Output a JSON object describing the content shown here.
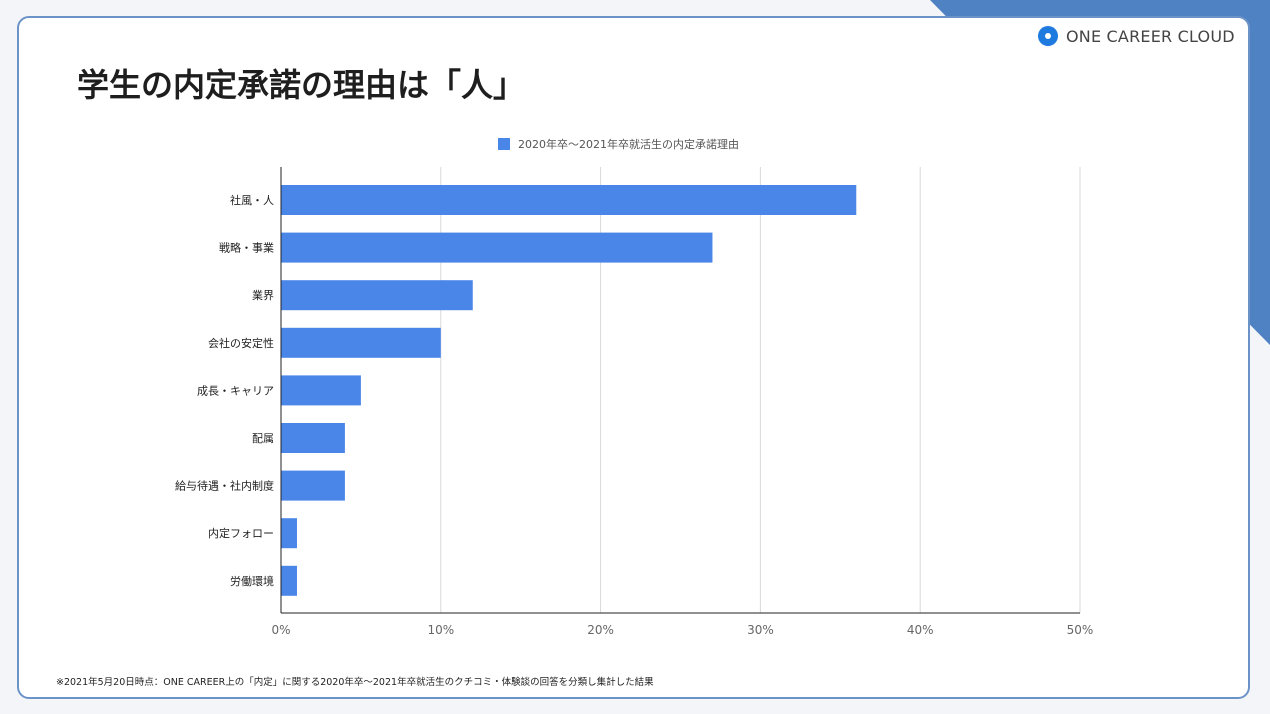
{
  "brand": {
    "name": "ONE CAREER CLOUD",
    "icon": "one-career-logo-icon",
    "accent": "#1f7ae0"
  },
  "slide_title": "学生の内定承諾の理由は「人」",
  "footnote": "※2021年5月20日時点：ONE CAREER上の「内定」に関する2020年卒～2021年卒就活生のクチコミ・体験談の回答を分類し集計した結果",
  "colors": {
    "bar": "#4a86e8",
    "corner": "#4f82c3",
    "frame": "#6c93c8"
  },
  "chart_data": {
    "type": "bar",
    "orientation": "horizontal",
    "categories": [
      "社風・人",
      "戦略・事業",
      "業界",
      "会社の安定性",
      "成長・キャリア",
      "配属",
      "給与待遇・社内制度",
      "内定フォロー",
      "労働環境"
    ],
    "series": [
      {
        "name": "2020年卒～2021年卒就活生の内定承諾理由",
        "values": [
          36,
          27,
          12,
          10,
          5,
          4,
          4,
          1,
          1
        ]
      }
    ],
    "xlim": [
      0,
      50
    ],
    "xticks": [
      0,
      10,
      20,
      30,
      40,
      50
    ],
    "xtick_labels": [
      "0%",
      "10%",
      "20%",
      "30%",
      "40%",
      "50%"
    ],
    "grid": true,
    "legend": "top-center"
  }
}
